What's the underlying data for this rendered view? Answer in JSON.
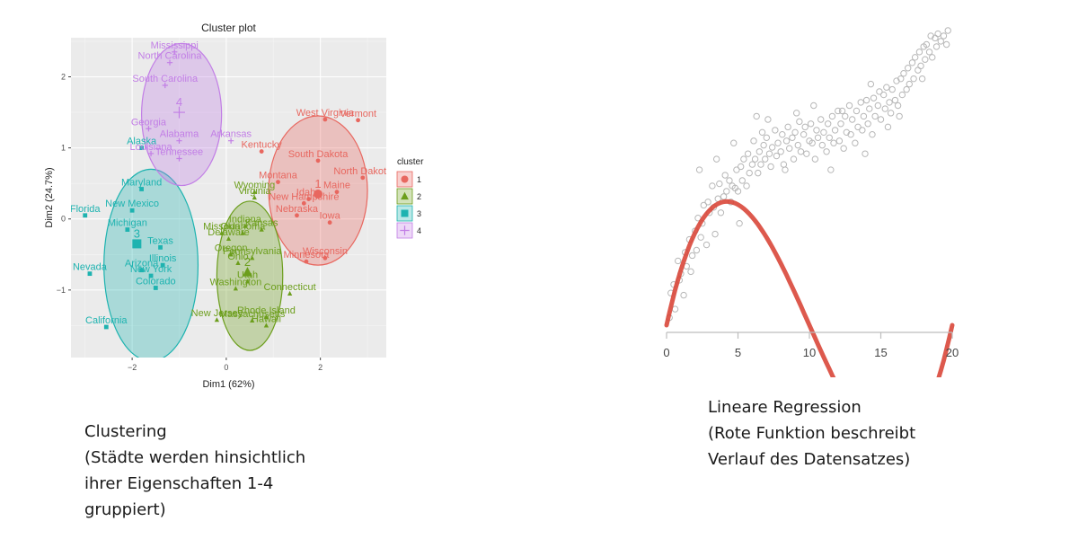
{
  "chart_data": [
    {
      "type": "scatter",
      "title": "Cluster plot",
      "xlabel": "Dim1 (62%)",
      "ylabel": "Dim2 (24.7%)",
      "xlim": [
        -3.3,
        3.4
      ],
      "ylim": [
        -1.95,
        2.55
      ],
      "xticks": [
        -2,
        0,
        2
      ],
      "yticks": [
        -1,
        0,
        1,
        2
      ],
      "grid": true,
      "legend": {
        "title": "cluster",
        "position": "right",
        "entries": [
          "1",
          "2",
          "3",
          "4"
        ]
      },
      "colors": {
        "1": "#e8675f",
        "2": "#6c9e1c",
        "3": "#1eb3b0",
        "4": "#c27ee6",
        "panel": "#ebebeb",
        "grid": "#ffffff"
      },
      "clusters": [
        {
          "name": "1",
          "marker": "circle",
          "center": [
            1.95,
            0.35
          ],
          "ellipse": {
            "cx": 1.95,
            "cy": 0.4,
            "rx": 1.05,
            "ry": 1.05
          },
          "points": [
            {
              "label": "West Virginia",
              "x": 2.1,
              "y": 1.4
            },
            {
              "label": "Vermont",
              "x": 2.8,
              "y": 1.39
            },
            {
              "label": "South Dakota",
              "x": 1.95,
              "y": 0.82
            },
            {
              "label": "North Dakota",
              "x": 2.9,
              "y": 0.58
            },
            {
              "label": "Montana",
              "x": 1.1,
              "y": 0.52
            },
            {
              "label": "Maine",
              "x": 2.35,
              "y": 0.38
            },
            {
              "label": "Idaho",
              "x": 1.75,
              "y": 0.28
            },
            {
              "label": "New Hampshire",
              "x": 1.65,
              "y": 0.22
            },
            {
              "label": "Iowa",
              "x": 2.2,
              "y": -0.05
            },
            {
              "label": "Nebraska",
              "x": 1.5,
              "y": 0.05
            },
            {
              "label": "Wisconsin",
              "x": 2.1,
              "y": -0.55
            },
            {
              "label": "Minnesota",
              "x": 1.7,
              "y": -0.6
            },
            {
              "label": "Kentucky",
              "x": 0.75,
              "y": 0.95
            }
          ]
        },
        {
          "name": "2",
          "marker": "triangle",
          "center": [
            0.45,
            -0.75
          ],
          "ellipse": {
            "cx": 0.5,
            "cy": -0.8,
            "rx": 0.7,
            "ry": 1.05
          },
          "points": [
            {
              "label": "Wyoming",
              "x": 0.6,
              "y": 0.38
            },
            {
              "label": "Virginia",
              "x": 0.6,
              "y": 0.3
            },
            {
              "label": "Indiana",
              "x": 0.4,
              "y": -0.1
            },
            {
              "label": "Kansas",
              "x": 0.75,
              "y": -0.15
            },
            {
              "label": "Missouri",
              "x": -0.1,
              "y": -0.2
            },
            {
              "label": "Oklahoma",
              "x": 0.35,
              "y": -0.2
            },
            {
              "label": "Delaware",
              "x": 0.05,
              "y": -0.28
            },
            {
              "label": "Oregon",
              "x": 0.1,
              "y": -0.5
            },
            {
              "label": "Pennsylvania",
              "x": 0.55,
              "y": -0.55
            },
            {
              "label": "Ohio",
              "x": 0.25,
              "y": -0.62
            },
            {
              "label": "Utah",
              "x": 0.45,
              "y": -0.88
            },
            {
              "label": "Washington",
              "x": 0.2,
              "y": -0.98
            },
            {
              "label": "Connecticut",
              "x": 1.35,
              "y": -1.05
            },
            {
              "label": "New Jersey",
              "x": -0.2,
              "y": -1.42
            },
            {
              "label": "Massachusetts",
              "x": 0.55,
              "y": -1.43
            },
            {
              "label": "Rhode Island",
              "x": 0.85,
              "y": -1.38
            },
            {
              "label": "Hawaii",
              "x": 0.85,
              "y": -1.5
            }
          ]
        },
        {
          "name": "3",
          "marker": "square",
          "center": [
            -1.9,
            -0.35
          ],
          "ellipse": {
            "cx": -1.6,
            "cy": -0.65,
            "rx": 1.0,
            "ry": 1.35
          },
          "points": [
            {
              "label": "Maryland",
              "x": -1.8,
              "y": 0.42
            },
            {
              "label": "Florida",
              "x": -3.0,
              "y": 0.05
            },
            {
              "label": "New Mexico",
              "x": -2.0,
              "y": 0.12
            },
            {
              "label": "Michigan",
              "x": -2.1,
              "y": -0.15
            },
            {
              "label": "Texas",
              "x": -1.4,
              "y": -0.4
            },
            {
              "label": "Illinois",
              "x": -1.35,
              "y": -0.65
            },
            {
              "label": "Arizona",
              "x": -1.8,
              "y": -0.72
            },
            {
              "label": "New York",
              "x": -1.6,
              "y": -0.8
            },
            {
              "label": "Colorado",
              "x": -1.5,
              "y": -0.97
            },
            {
              "label": "Nevada",
              "x": -2.9,
              "y": -0.77
            },
            {
              "label": "California",
              "x": -2.55,
              "y": -1.52
            },
            {
              "label": "Alaska",
              "x": -1.8,
              "y": 1.0
            }
          ]
        },
        {
          "name": "4",
          "marker": "plus",
          "center": [
            -1.0,
            1.5
          ],
          "ellipse": {
            "cx": -0.95,
            "cy": 1.47,
            "rx": 0.85,
            "ry": 1.0
          },
          "points": [
            {
              "label": "Mississippi",
              "x": -1.1,
              "y": 2.35
            },
            {
              "label": "North Carolina",
              "x": -1.2,
              "y": 2.2
            },
            {
              "label": "South Carolina",
              "x": -1.3,
              "y": 1.88
            },
            {
              "label": "Georgia",
              "x": -1.65,
              "y": 1.27
            },
            {
              "label": "Alabama",
              "x": -1.0,
              "y": 1.1
            },
            {
              "label": "Arkansas",
              "x": 0.1,
              "y": 1.1
            },
            {
              "label": "Louisiana",
              "x": -1.6,
              "y": 0.92
            },
            {
              "label": "Tennessee",
              "x": -1.0,
              "y": 0.85
            }
          ]
        }
      ]
    },
    {
      "type": "scatter",
      "title": "",
      "xlabel": "",
      "ylabel": "",
      "xlim": [
        0,
        20
      ],
      "ylim": [
        -1.0,
        1.75
      ],
      "xticks": [
        0,
        5,
        10,
        15,
        20
      ],
      "grid": false,
      "colors": {
        "points": "#b7b7b7",
        "fit": "#d9473a"
      },
      "fit": {
        "type": "cubic",
        "coefficients": [
          -1.0,
          0.6,
          -0.09,
          0.003
        ]
      },
      "points": [
        [
          0.2,
          -0.93
        ],
        [
          0.3,
          -0.7
        ],
        [
          0.5,
          -0.62
        ],
        [
          0.6,
          -0.85
        ],
        [
          0.8,
          -0.4
        ],
        [
          0.9,
          -0.58
        ],
        [
          1.0,
          -0.52
        ],
        [
          1.2,
          -0.72
        ],
        [
          1.3,
          -0.32
        ],
        [
          1.4,
          -0.45
        ],
        [
          1.6,
          -0.2
        ],
        [
          1.7,
          -0.5
        ],
        [
          1.8,
          -0.35
        ],
        [
          2.0,
          -0.12
        ],
        [
          2.1,
          -0.3
        ],
        [
          2.2,
          0.0
        ],
        [
          2.4,
          -0.18
        ],
        [
          2.5,
          -0.05
        ],
        [
          2.6,
          0.12
        ],
        [
          2.8,
          -0.25
        ],
        [
          2.9,
          0.15
        ],
        [
          3.0,
          0.05
        ],
        [
          3.2,
          0.3
        ],
        [
          3.3,
          0.1
        ],
        [
          3.4,
          -0.15
        ],
        [
          3.6,
          0.18
        ],
        [
          3.7,
          0.32
        ],
        [
          3.8,
          0.05
        ],
        [
          4.0,
          0.2
        ],
        [
          4.1,
          0.4
        ],
        [
          4.2,
          0.25
        ],
        [
          4.4,
          0.35
        ],
        [
          4.5,
          0.15
        ],
        [
          4.6,
          0.3
        ],
        [
          4.8,
          0.28
        ],
        [
          4.9,
          0.45
        ],
        [
          5.0,
          0.25
        ],
        [
          5.2,
          0.48
        ],
        [
          5.3,
          0.35
        ],
        [
          5.4,
          0.55
        ],
        [
          5.6,
          0.3
        ],
        [
          5.7,
          0.6
        ],
        [
          5.8,
          0.42
        ],
        [
          6.0,
          0.5
        ],
        [
          6.1,
          0.72
        ],
        [
          6.2,
          0.55
        ],
        [
          6.4,
          0.42
        ],
        [
          6.5,
          0.62
        ],
        [
          6.6,
          0.5
        ],
        [
          6.8,
          0.68
        ],
        [
          6.9,
          0.55
        ],
        [
          7.0,
          0.75
        ],
        [
          7.2,
          0.6
        ],
        [
          7.3,
          0.48
        ],
        [
          7.4,
          0.66
        ],
        [
          7.6,
          0.82
        ],
        [
          7.7,
          0.58
        ],
        [
          7.8,
          0.7
        ],
        [
          8.0,
          0.62
        ],
        [
          8.1,
          0.78
        ],
        [
          8.2,
          0.5
        ],
        [
          8.4,
          0.72
        ],
        [
          8.5,
          0.85
        ],
        [
          8.6,
          0.65
        ],
        [
          8.8,
          0.75
        ],
        [
          8.9,
          0.55
        ],
        [
          9.0,
          0.8
        ],
        [
          9.2,
          0.68
        ],
        [
          9.3,
          0.9
        ],
        [
          9.4,
          0.62
        ],
        [
          9.6,
          0.78
        ],
        [
          9.7,
          0.85
        ],
        [
          9.8,
          0.6
        ],
        [
          10.0,
          0.72
        ],
        [
          10.1,
          0.88
        ],
        [
          10.2,
          0.7
        ],
        [
          10.4,
          0.55
        ],
        [
          10.5,
          0.82
        ],
        [
          10.6,
          0.75
        ],
        [
          10.8,
          0.92
        ],
        [
          10.9,
          0.68
        ],
        [
          11.0,
          0.8
        ],
        [
          11.2,
          0.62
        ],
        [
          11.3,
          0.88
        ],
        [
          11.4,
          0.75
        ],
        [
          11.6,
          0.95
        ],
        [
          11.7,
          0.7
        ],
        [
          11.8,
          0.82
        ],
        [
          12.0,
          1.0
        ],
        [
          12.1,
          0.72
        ],
        [
          12.2,
          0.88
        ],
        [
          12.4,
          0.65
        ],
        [
          12.5,
          0.95
        ],
        [
          12.6,
          0.8
        ],
        [
          12.8,
          1.05
        ],
        [
          12.9,
          0.78
        ],
        [
          13.0,
          0.92
        ],
        [
          13.2,
          0.7
        ],
        [
          13.3,
          1.0
        ],
        [
          13.4,
          0.85
        ],
        [
          13.6,
          1.08
        ],
        [
          13.7,
          0.82
        ],
        [
          13.8,
          0.95
        ],
        [
          14.0,
          1.1
        ],
        [
          14.1,
          0.88
        ],
        [
          14.2,
          1.02
        ],
        [
          14.4,
          0.78
        ],
        [
          14.5,
          1.12
        ],
        [
          14.6,
          0.95
        ],
        [
          14.8,
          1.05
        ],
        [
          14.9,
          1.18
        ],
        [
          15.0,
          0.92
        ],
        [
          15.2,
          1.15
        ],
        [
          15.3,
          1.02
        ],
        [
          15.4,
          1.22
        ],
        [
          15.6,
          1.08
        ],
        [
          15.7,
          0.98
        ],
        [
          15.8,
          1.2
        ],
        [
          16.0,
          1.1
        ],
        [
          16.1,
          1.28
        ],
        [
          16.2,
          1.05
        ],
        [
          16.4,
          1.3
        ],
        [
          16.5,
          1.15
        ],
        [
          16.6,
          1.35
        ],
        [
          16.8,
          1.2
        ],
        [
          16.9,
          1.4
        ],
        [
          17.0,
          1.25
        ],
        [
          17.2,
          1.45
        ],
        [
          17.3,
          1.3
        ],
        [
          17.4,
          1.5
        ],
        [
          17.6,
          1.38
        ],
        [
          17.7,
          1.55
        ],
        [
          17.8,
          1.42
        ],
        [
          18.0,
          1.6
        ],
        [
          18.1,
          1.48
        ],
        [
          18.2,
          1.62
        ],
        [
          18.4,
          1.55
        ],
        [
          18.5,
          1.7
        ],
        [
          18.6,
          1.5
        ],
        [
          18.8,
          1.68
        ],
        [
          18.9,
          1.6
        ],
        [
          19.0,
          1.72
        ],
        [
          19.2,
          1.65
        ],
        [
          19.4,
          1.7
        ],
        [
          19.6,
          1.62
        ],
        [
          19.7,
          1.75
        ],
        [
          6.3,
          0.95
        ],
        [
          9.1,
          0.98
        ],
        [
          5.1,
          -0.05
        ],
        [
          3.5,
          0.55
        ],
        [
          8.3,
          0.45
        ],
        [
          11.5,
          0.45
        ],
        [
          13.9,
          0.6
        ],
        [
          4.7,
          0.7
        ],
        [
          7.1,
          0.92
        ],
        [
          15.5,
          0.85
        ],
        [
          2.3,
          0.45
        ],
        [
          12.3,
          1.0
        ],
        [
          10.3,
          1.05
        ],
        [
          16.3,
          0.95
        ],
        [
          17.9,
          1.3
        ],
        [
          6.7,
          0.8
        ],
        [
          14.3,
          1.25
        ]
      ]
    }
  ],
  "captions": {
    "left": [
      "Clustering",
      "(Städte werden hinsichtlich",
      "ihrer Eigenschaften 1-4",
      "gruppiert)"
    ],
    "right": [
      "Lineare Regression",
      "(Rote Funktion beschreibt",
      "Verlauf des Datensatzes)"
    ]
  }
}
